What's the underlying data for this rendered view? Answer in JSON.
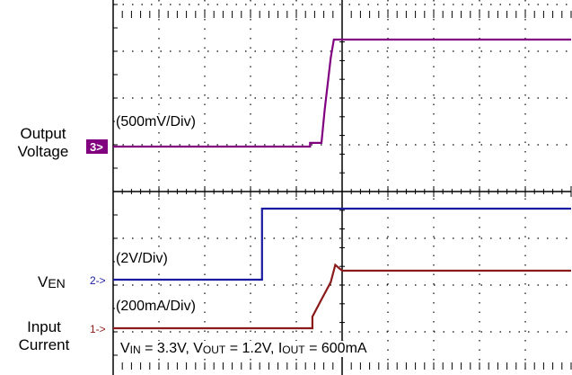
{
  "chart_data": {
    "type": "line",
    "title": "",
    "grid": true,
    "channels": [
      {
        "marker": "3",
        "name": "Output Voltage",
        "scale_label": "(500mV/Div)",
        "color": "#800080",
        "points": [
          [
            0,
            0
          ],
          [
            4.3,
            0
          ],
          [
            4.3,
            0.1
          ],
          [
            4.55,
            0.1
          ],
          [
            4.62,
            1.0
          ],
          [
            4.75,
            2.4
          ],
          [
            4.82,
            2.9
          ],
          [
            10,
            2.9
          ]
        ]
      },
      {
        "marker": "2",
        "name_main": "V",
        "name_sub": "EN",
        "scale_label": "(2V/Div)",
        "color": "#1a1aa0",
        "points": [
          [
            0,
            0
          ],
          [
            3.25,
            0
          ],
          [
            3.25,
            1.6
          ],
          [
            10,
            1.6
          ]
        ]
      },
      {
        "marker": "1",
        "name": "Input Current",
        "scale_label": "(200mA/Div)",
        "color": "#8b1a1a",
        "points": [
          [
            0,
            0
          ],
          [
            4.35,
            0
          ],
          [
            4.35,
            0.2
          ],
          [
            4.55,
            0.5
          ],
          [
            4.75,
            0.8
          ],
          [
            4.85,
            1.1
          ],
          [
            5.0,
            1.0
          ],
          [
            10,
            1.0
          ]
        ]
      }
    ],
    "conditions": {
      "vin_main": "V",
      "vin_sub": "IN",
      "vin_value": " = 3.3V, ",
      "vout_main": "V",
      "vout_sub": "OUT",
      "vout_value": " = 1.2V, ",
      "iout_main": "I",
      "iout_sub": "OUT",
      "iout_value": " = 600mA"
    }
  }
}
